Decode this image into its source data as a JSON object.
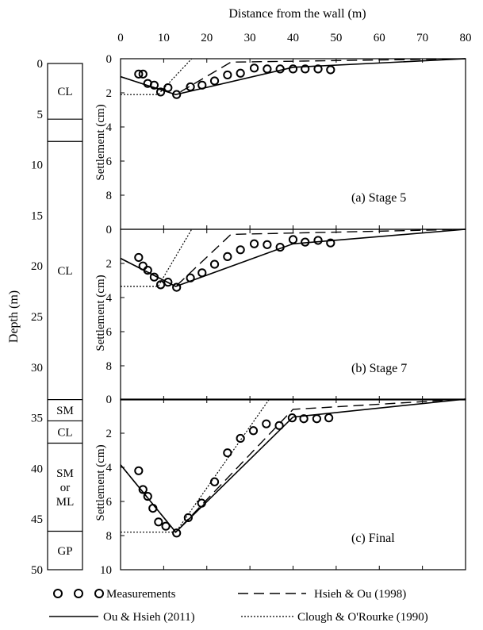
{
  "chart_data": {
    "type": "line",
    "x_axis": {
      "label": "Distance from the wall (m)",
      "range": [
        0,
        80
      ],
      "ticks": [
        0,
        10,
        20,
        30,
        40,
        50,
        60,
        70,
        80
      ]
    },
    "y_axis": {
      "label": "Settlement (cm)",
      "range": [
        0,
        10
      ],
      "ticks": [
        0,
        2,
        4,
        6,
        8
      ]
    },
    "bottom_tick": "10",
    "soil_profile": {
      "ylabel": "Depth (m)",
      "range": [
        0,
        50
      ],
      "ticks": [
        0,
        5,
        10,
        15,
        20,
        25,
        30,
        35,
        40,
        45,
        50
      ],
      "layers": [
        {
          "label": "CL",
          "top": 0,
          "bottom": 5.5
        },
        {
          "label": "",
          "top": 5.5,
          "bottom": 7.7
        },
        {
          "label": "CL",
          "top": 7.7,
          "bottom": 33.2
        },
        {
          "label": "SM",
          "top": 33.2,
          "bottom": 35.3
        },
        {
          "label": "CL",
          "top": 35.3,
          "bottom": 37.5
        },
        {
          "label": "SM or ML",
          "top": 37.5,
          "bottom": 46.2
        },
        {
          "label": "GP",
          "top": 46.2,
          "bottom": 50
        }
      ]
    },
    "panels": [
      {
        "caption": "(a) Stage 5",
        "measurements": {
          "x": [
            4.2,
            5.2,
            6.3,
            7.8,
            9.3,
            11.0,
            13.0,
            16.2,
            18.9,
            21.8,
            24.8,
            27.8,
            31.0,
            34.0,
            37.0,
            40.0,
            42.8,
            45.8,
            48.7
          ],
          "y": [
            0.9,
            0.9,
            1.45,
            1.55,
            1.95,
            1.7,
            2.1,
            1.65,
            1.55,
            1.3,
            0.95,
            0.85,
            0.55,
            0.6,
            0.6,
            0.6,
            0.6,
            0.6,
            0.65
          ]
        },
        "hsieh_ou_1998": {
          "x": [
            0,
            12.8,
            25.6,
            80
          ],
          "y": [
            1.05,
            2.1,
            0.2,
            0.0
          ]
        },
        "ou_hsieh_2011": {
          "x": [
            0,
            12.8,
            40,
            80
          ],
          "y": [
            1.05,
            2.1,
            0.5,
            0.0
          ]
        },
        "clough_orourke_1990": {
          "x": [
            0,
            8.7,
            16.5
          ],
          "y": [
            2.1,
            2.1,
            0.0
          ]
        }
      },
      {
        "caption": "(b) Stage 7",
        "measurements": {
          "x": [
            4.2,
            5.2,
            6.3,
            7.8,
            9.3,
            11.0,
            13.0,
            16.2,
            18.9,
            21.8,
            24.8,
            27.8,
            31.0,
            34.0,
            37.0,
            40.0,
            42.8,
            45.8,
            48.7
          ],
          "y": [
            1.65,
            2.15,
            2.4,
            2.8,
            3.25,
            3.1,
            3.4,
            2.85,
            2.55,
            2.05,
            1.6,
            1.2,
            0.85,
            0.9,
            1.05,
            0.6,
            0.75,
            0.65,
            0.8
          ]
        },
        "hsieh_ou_1998": {
          "x": [
            0,
            12.8,
            25.6,
            80
          ],
          "y": [
            1.7,
            3.35,
            0.3,
            0.0
          ]
        },
        "ou_hsieh_2011": {
          "x": [
            0,
            12.8,
            40,
            80
          ],
          "y": [
            1.7,
            3.35,
            0.85,
            0.0
          ]
        },
        "clough_orourke_1990": {
          "x": [
            0,
            8.7,
            16.5
          ],
          "y": [
            3.35,
            3.35,
            0.0
          ]
        }
      },
      {
        "caption": "(c) Final",
        "measurements": {
          "x": [
            4.2,
            5.2,
            6.3,
            7.5,
            8.8,
            10.5,
            13.0,
            15.7,
            18.8,
            21.8,
            24.8,
            27.8,
            30.8,
            33.8,
            36.8,
            39.8,
            42.5,
            45.5,
            48.3
          ],
          "y": [
            4.2,
            5.3,
            5.7,
            6.4,
            7.2,
            7.45,
            7.85,
            6.95,
            6.1,
            4.85,
            3.15,
            2.3,
            1.85,
            1.45,
            1.55,
            1.1,
            1.15,
            1.15,
            1.1
          ]
        },
        "hsieh_ou_1998": {
          "x": [
            0,
            12.8,
            40,
            80
          ],
          "y": [
            3.85,
            7.8,
            0.6,
            0.0
          ]
        },
        "ou_hsieh_2011": {
          "x": [
            0,
            12.8,
            40,
            80
          ],
          "y": [
            3.85,
            7.8,
            1.05,
            0.0
          ]
        },
        "clough_orourke_1990": {
          "x": [
            0,
            12.8,
            34.5
          ],
          "y": [
            7.8,
            7.8,
            0.0
          ]
        }
      }
    ],
    "legend": {
      "measurements": "Measurements",
      "hsieh_ou": "Hsieh & Ou (1998)",
      "ou_hsieh": "Ou & Hsieh (2011)",
      "clough": "Clough & O'Rourke (1990)"
    }
  }
}
